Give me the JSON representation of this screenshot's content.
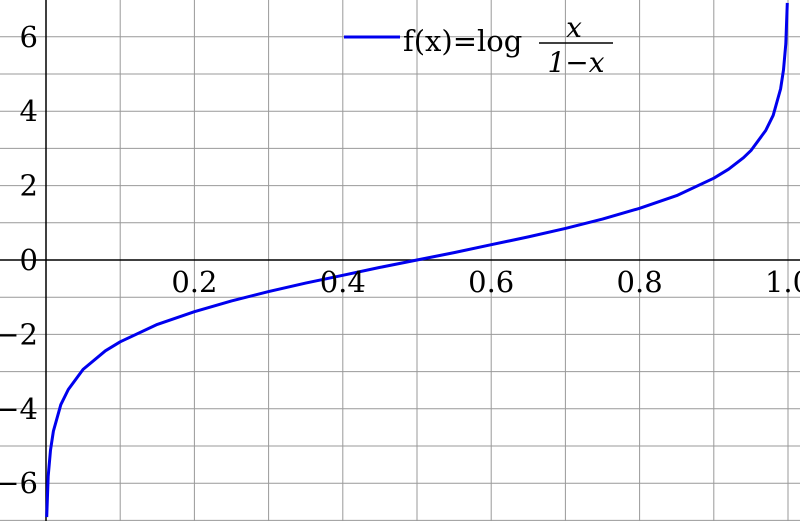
{
  "chart_data": {
    "type": "line",
    "title": "",
    "xlabel": "",
    "ylabel": "",
    "xlim": [
      0,
      1.02
    ],
    "ylim": [
      -7,
      7
    ],
    "grid": true,
    "x_major_ticks": [
      0.2,
      0.4,
      0.6,
      0.8,
      1.0
    ],
    "x_tick_labels": [
      "0.2",
      "0.4",
      "0.6",
      "0.8",
      "1.0"
    ],
    "y_major_ticks": [
      -6,
      -4,
      -2,
      0,
      2,
      4,
      6
    ],
    "y_tick_labels": [
      "−6",
      "−4",
      "−2",
      "0",
      "2",
      "4",
      "6"
    ],
    "legend": {
      "placement": "top-center",
      "entries": [
        {
          "lhs": "f(x)=log",
          "numerator": "x",
          "denominator": "1−x"
        }
      ]
    },
    "series": [
      {
        "name": "f(x)=log x/(1−x)",
        "color": "#0000ee",
        "x": [
          0.001,
          0.003,
          0.006,
          0.01,
          0.02,
          0.03,
          0.05,
          0.08,
          0.1,
          0.15,
          0.2,
          0.25,
          0.3,
          0.35,
          0.4,
          0.45,
          0.5,
          0.55,
          0.6,
          0.65,
          0.7,
          0.75,
          0.8,
          0.85,
          0.9,
          0.92,
          0.94,
          0.95,
          0.97,
          0.98,
          0.99,
          0.994,
          0.997,
          0.999
        ],
        "y": [
          -6.91,
          -5.81,
          -5.11,
          -4.6,
          -3.89,
          -3.48,
          -2.94,
          -2.44,
          -2.2,
          -1.73,
          -1.39,
          -1.1,
          -0.85,
          -0.62,
          -0.41,
          -0.2,
          0,
          0.2,
          0.41,
          0.62,
          0.85,
          1.1,
          1.39,
          1.73,
          2.2,
          2.44,
          2.75,
          2.94,
          3.48,
          3.89,
          4.6,
          5.11,
          5.81,
          6.91
        ]
      }
    ]
  }
}
